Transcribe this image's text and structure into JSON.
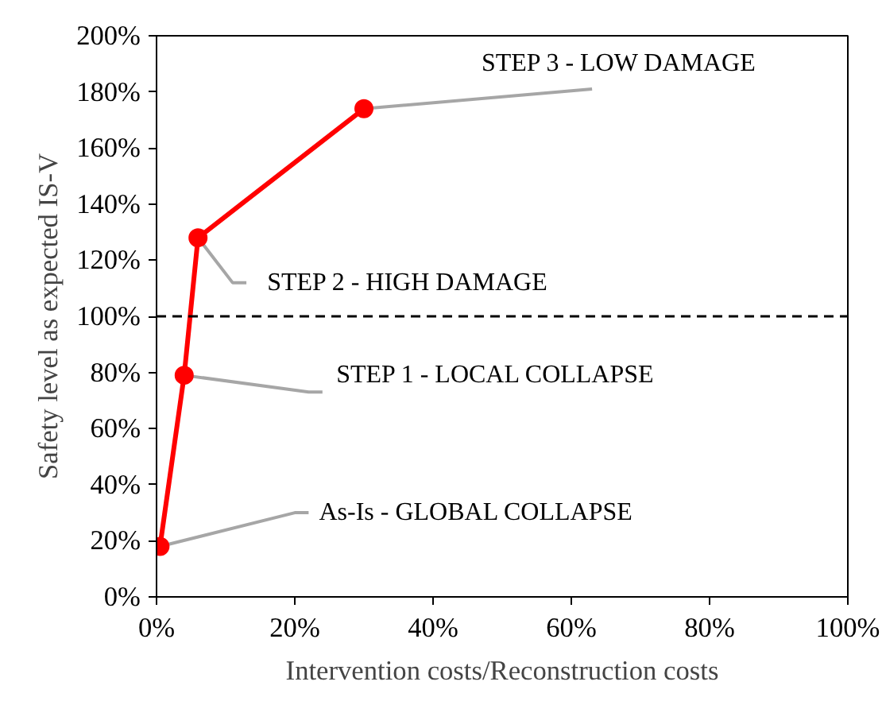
{
  "chart_data": {
    "type": "line",
    "xlabel": "Intervention costs/Reconstruction costs",
    "ylabel": "Safety level as expected IS-V",
    "x": [
      0.5,
      4,
      6,
      30
    ],
    "series": [
      {
        "color": "#ff0000",
        "values": [
          18,
          79,
          128,
          174
        ]
      }
    ],
    "marker": "circle",
    "line_style": "solid",
    "grid": false,
    "xlim": [
      0,
      100
    ],
    "xticks": [
      {
        "value": 0,
        "label": "0%"
      },
      {
        "value": 20,
        "label": "20%"
      },
      {
        "value": 40,
        "label": "40%"
      },
      {
        "value": 60,
        "label": "60%"
      },
      {
        "value": 80,
        "label": "80%"
      },
      {
        "value": 100,
        "label": "100%"
      }
    ],
    "ylim": [
      0,
      200
    ],
    "yticks": [
      {
        "value": 0,
        "label": "0%"
      },
      {
        "value": 20,
        "label": "20%"
      },
      {
        "value": 40,
        "label": "40%"
      },
      {
        "value": 60,
        "label": "60%"
      },
      {
        "value": 80,
        "label": "80%"
      },
      {
        "value": 100,
        "label": "100%"
      },
      {
        "value": 120,
        "label": "120%"
      },
      {
        "value": 140,
        "label": "140%"
      },
      {
        "value": 160,
        "label": "160%"
      },
      {
        "value": 180,
        "label": "180%"
      },
      {
        "value": 200,
        "label": "200%"
      }
    ],
    "ref_lines": [
      {
        "axis": "y",
        "value": 100,
        "color": "#000000",
        "line_style": "dashed"
      }
    ],
    "annotations": [
      {
        "text": "As-Is - GLOBAL COLLAPSE",
        "x": 0.5,
        "y": 18
      },
      {
        "text": "STEP 1 - LOCAL COLLAPSE",
        "x": 4,
        "y": 79
      },
      {
        "text": "STEP 2 - HIGH DAMAGE",
        "x": 6,
        "y": 128
      },
      {
        "text": "STEP 3 - LOW DAMAGE",
        "x": 30,
        "y": 174
      }
    ]
  }
}
